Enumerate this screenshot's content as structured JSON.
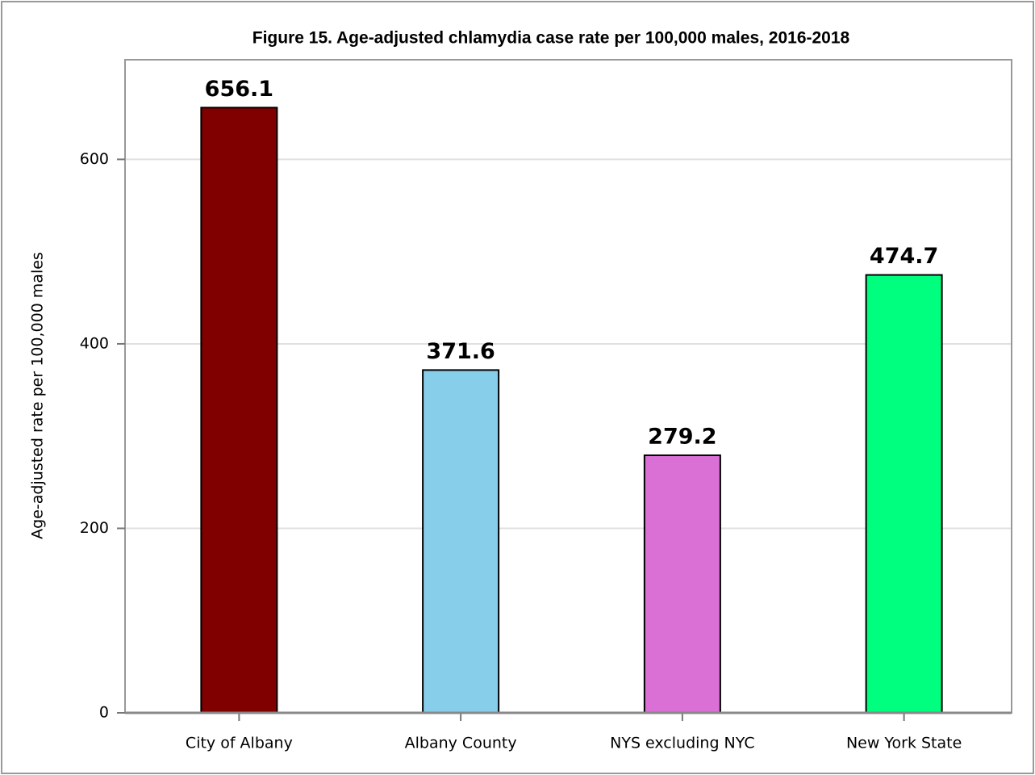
{
  "chart_data": {
    "type": "bar",
    "title": "Figure 15. Age-adjusted chlamydia case rate per 100,000 males, 2016-2018",
    "ylabel": "Age-adjusted rate per 100,000 males",
    "categories": [
      "City of Albany",
      "Albany County",
      "NYS excluding NYC",
      "New York State"
    ],
    "values": [
      656.1,
      371.6,
      279.2,
      474.7
    ],
    "colors": [
      "#800000",
      "#87ceeb",
      "#da70d6",
      "#00ff7f"
    ],
    "ylim": [
      0,
      708
    ],
    "yticks": [
      0,
      200,
      400,
      600
    ],
    "grid": true
  }
}
